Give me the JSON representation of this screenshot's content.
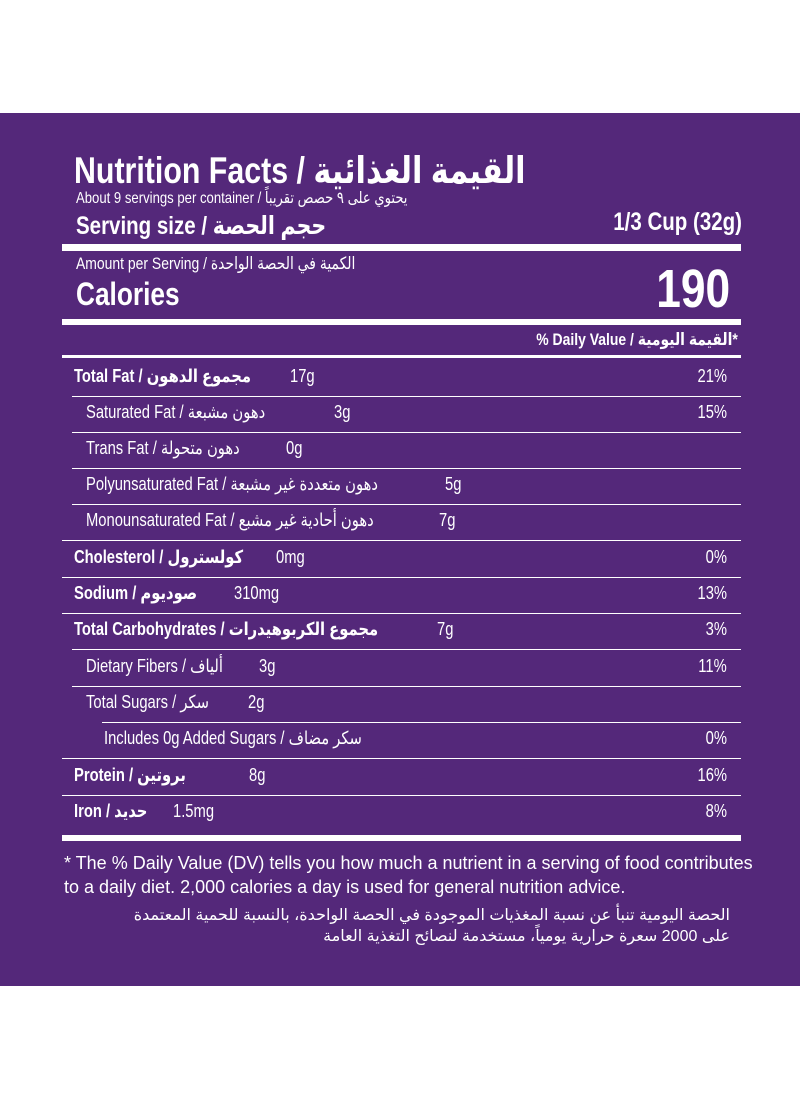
{
  "label": {
    "title": "Nutrition Facts / القيمة الغذائية",
    "servings_per_container": "About 9 servings per container / يحتوي على ٩ حصص تقريباً",
    "serving_size_label": "Serving size / حجم الحصة",
    "serving_size_value": "1/3 Cup (32g)",
    "amount_per_serving": "Amount per Serving / الكمية في الحصة الواحدة",
    "calories_label": "Calories",
    "calories_value": "190",
    "daily_value_header": "% Daily Value / القيمة اليومية*"
  },
  "nutrients": [
    {
      "label": "Total Fat / مجموع الدهون",
      "amount": "17g",
      "dv": "21%"
    },
    {
      "label": "Saturated Fat / دهون مشبعة",
      "amount": "3g",
      "dv": "15%"
    },
    {
      "label": "Trans Fat / دهون متحولة",
      "amount": "0g",
      "dv": ""
    },
    {
      "label": "Polyunsaturated Fat / دهون متعددة غير مشبعة",
      "amount": "5g",
      "dv": ""
    },
    {
      "label": "Monounsaturated Fat / دهون أحادية غير مشبع",
      "amount": "7g",
      "dv": ""
    },
    {
      "label": "Cholesterol / كولسترول",
      "amount": "0mg",
      "dv": "0%"
    },
    {
      "label": "Sodium / صوديوم",
      "amount": "310mg",
      "dv": "13%"
    },
    {
      "label": "Total Carbohydrates / مجموع الكربوهيدرات",
      "amount": "7g",
      "dv": "3%"
    },
    {
      "label": "Dietary Fibers / ألياف",
      "amount": "3g",
      "dv": "11%"
    },
    {
      "label": "Total Sugars / سكر",
      "amount": "2g",
      "dv": ""
    },
    {
      "label": "Includes 0g Added Sugars / سكر مضاف",
      "amount": "",
      "dv": "0%"
    },
    {
      "label": "Protein / بروتين",
      "amount": "8g",
      "dv": "16%"
    },
    {
      "label": "Iron / حديد",
      "amount": "1.5mg",
      "dv": "8%"
    }
  ],
  "footnote": {
    "english": "* The % Daily Value (DV) tells you how much a nutrient in a serving of food contributes to a daily diet. 2,000 calories a day is used for general nutrition advice.",
    "arabic": "الحصة اليومية تنبأ عن نسبة المغذيات الموجودة في الحصة الواحدة، بالنسبة للحمية المعتمدة على 2000 سعرة حرارية يومياً، مستخدمة لنصائح التغذية العامة"
  },
  "colors": {
    "background": "#54287a",
    "text": "#ffffff",
    "page": "#ffffff"
  }
}
